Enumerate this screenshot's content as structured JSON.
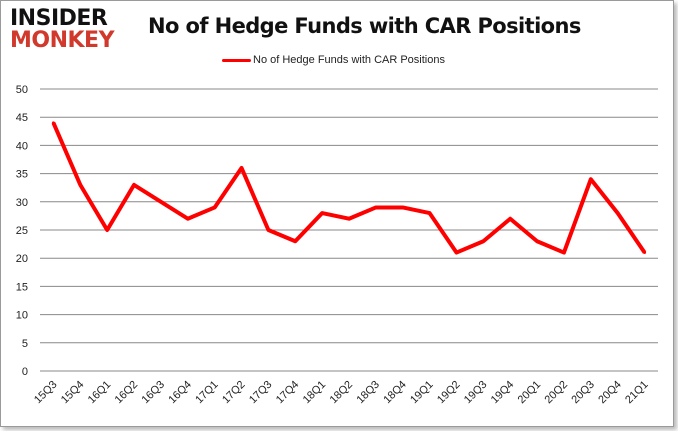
{
  "logo": {
    "line1": "INSIDER",
    "line2": "MONKEY"
  },
  "chart_data": {
    "type": "line",
    "title": "No of Hedge Funds with CAR Positions",
    "categories": [
      "15Q3",
      "15Q4",
      "16Q1",
      "16Q2",
      "16Q3",
      "16Q4",
      "17Q1",
      "17Q2",
      "17Q3",
      "17Q4",
      "18Q1",
      "18Q2",
      "18Q3",
      "18Q4",
      "19Q1",
      "19Q2",
      "19Q3",
      "19Q4",
      "20Q1",
      "20Q2",
      "20Q3",
      "20Q4",
      "21Q1"
    ],
    "series": [
      {
        "name": "No of Hedge Funds with CAR Positions",
        "color": "#ff0000",
        "values": [
          44,
          33,
          25,
          33,
          30,
          27,
          29,
          36,
          25,
          23,
          28,
          27,
          29,
          29,
          28,
          21,
          23,
          27,
          23,
          21,
          34,
          28,
          21
        ]
      }
    ],
    "ylim": [
      0,
      50
    ],
    "yticks": [
      0,
      5,
      10,
      15,
      20,
      25,
      30,
      35,
      40,
      45,
      50
    ],
    "grid": true,
    "legend": "top"
  }
}
